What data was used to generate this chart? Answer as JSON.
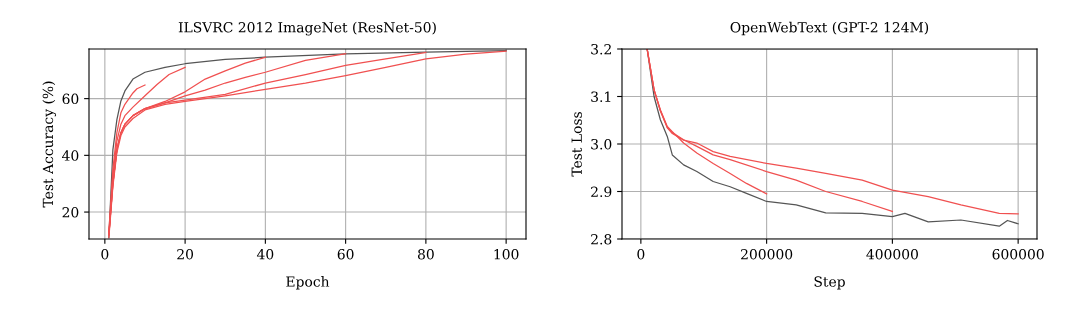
{
  "chart_data": [
    {
      "type": "line",
      "title": "ILSVRC 2012 ImageNet (ResNet-50)",
      "xlabel": "Epoch",
      "ylabel": "Test Accuracy (%)",
      "xlim": [
        -3.95,
        104.95
      ],
      "ylim": [
        10.5,
        77.5
      ],
      "xticks": [
        0,
        20,
        40,
        60,
        80,
        100
      ],
      "yticks": [
        20,
        40,
        60
      ],
      "grid": true,
      "legend": false,
      "marker": "none",
      "line_style": "solid",
      "series": [
        {
          "color": "#555555",
          "x": [
            1,
            2,
            3,
            4,
            5,
            7,
            10,
            15,
            20,
            30,
            40,
            60,
            80,
            100
          ],
          "values": [
            11,
            41.9,
            52.6,
            59.2,
            62.7,
            66.9,
            69.3,
            71,
            72.3,
            73.8,
            74.6,
            75.8,
            76.4,
            76.9
          ]
        },
        {
          "color": "#f05050",
          "x": [
            1,
            2,
            3,
            4,
            5,
            7,
            8,
            10
          ],
          "values": [
            13,
            35,
            48,
            55,
            58,
            62,
            63.5,
            64.8
          ]
        },
        {
          "color": "#f05050",
          "x": [
            1,
            2,
            3,
            4,
            5,
            7,
            10,
            13,
            16,
            20
          ],
          "values": [
            12,
            33,
            45,
            51,
            54,
            57,
            61,
            65,
            68.5,
            71
          ]
        },
        {
          "color": "#f05050",
          "x": [
            1,
            2,
            3,
            4,
            5,
            7,
            10,
            15,
            20,
            25,
            30,
            35,
            40
          ],
          "values": [
            12,
            30,
            42,
            48,
            51,
            54,
            56.5,
            59,
            62.4,
            66.9,
            69.8,
            72.5,
            74.6
          ]
        },
        {
          "color": "#f05050",
          "x": [
            1,
            2,
            3,
            4,
            5,
            7,
            10,
            15,
            20,
            25,
            30,
            35,
            40,
            50,
            60
          ],
          "values": [
            12,
            30,
            42,
            48,
            51,
            54,
            56.5,
            58.5,
            61,
            63,
            65.5,
            67.5,
            69.3,
            73.5,
            75.8
          ]
        },
        {
          "color": "#f05050",
          "x": [
            1,
            2,
            3,
            4,
            5,
            7,
            10,
            15,
            20,
            30,
            40,
            50,
            60,
            70,
            80
          ],
          "values": [
            12,
            30,
            42,
            48,
            51,
            54,
            56.5,
            58.5,
            59.5,
            61.5,
            65.5,
            68.5,
            71.7,
            74,
            76.3
          ]
        },
        {
          "color": "#f05050",
          "x": [
            1,
            2,
            3,
            4,
            5,
            7,
            10,
            15,
            20,
            30,
            40,
            50,
            60,
            70,
            80,
            90,
            100
          ],
          "values": [
            11,
            29,
            41,
            47,
            50,
            53,
            56,
            58,
            59,
            61,
            63.3,
            65.5,
            68.1,
            71,
            74,
            75.7,
            76.7
          ]
        }
      ]
    },
    {
      "type": "line",
      "title": "OpenWebText (GPT-2 124M)",
      "xlabel": "Step",
      "ylabel": "Test Loss",
      "xlim": [
        -30000,
        630000
      ],
      "ylim": [
        2.8,
        3.2
      ],
      "xticks": [
        0,
        200000,
        400000,
        600000
      ],
      "yticks": [
        2.8,
        2.9,
        {
          "value": 3.0,
          "label": "3.0"
        },
        3.1,
        3.2
      ],
      "grid": true,
      "legend": false,
      "marker": "none",
      "line_style": "solid",
      "series": [
        {
          "color": "#555555",
          "x": [
            10000,
            21000,
            31000,
            42000,
            50000,
            68000,
            89000,
            115000,
            142000,
            168000,
            200000,
            247000,
            294000,
            352000,
            400000,
            420000,
            457000,
            509000,
            570000,
            583000,
            600000
          ],
          "values": [
            3.2,
            3.1,
            3.051,
            3.016,
            2.977,
            2.956,
            2.942,
            2.921,
            2.91,
            2.896,
            2.879,
            2.872,
            2.855,
            2.854,
            2.847,
            2.854,
            2.836,
            2.84,
            2.827,
            2.839,
            2.832
          ]
        },
        {
          "color": "#f05050",
          "x": [
            10000,
            21000,
            31000,
            42000,
            50000,
            68000,
            89000,
            115000,
            142000,
            168000,
            200000
          ],
          "values": [
            3.2,
            3.114,
            3.072,
            3.037,
            3.026,
            3.002,
            2.981,
            2.959,
            2.938,
            2.917,
            2.895
          ]
        },
        {
          "color": "#f05050",
          "x": [
            10000,
            21000,
            31000,
            42000,
            50000,
            68000,
            89000,
            115000,
            142000,
            200000,
            247000,
            294000,
            352000,
            400000
          ],
          "values": [
            3.2,
            3.114,
            3.07,
            3.035,
            3.024,
            3.009,
            2.995,
            2.977,
            2.967,
            2.942,
            2.924,
            2.9,
            2.879,
            2.858
          ]
        },
        {
          "color": "#f05050",
          "x": [
            10000,
            21000,
            31000,
            42000,
            50000,
            68000,
            89000,
            115000,
            142000,
            200000,
            247000,
            294000,
            352000,
            400000,
            457000,
            509000,
            570000,
            600000
          ],
          "values": [
            3.2,
            3.114,
            3.07,
            3.034,
            3.022,
            3.008,
            3.002,
            2.984,
            2.974,
            2.959,
            2.949,
            2.938,
            2.924,
            2.903,
            2.889,
            2.872,
            2.854,
            2.853
          ]
        }
      ]
    }
  ]
}
